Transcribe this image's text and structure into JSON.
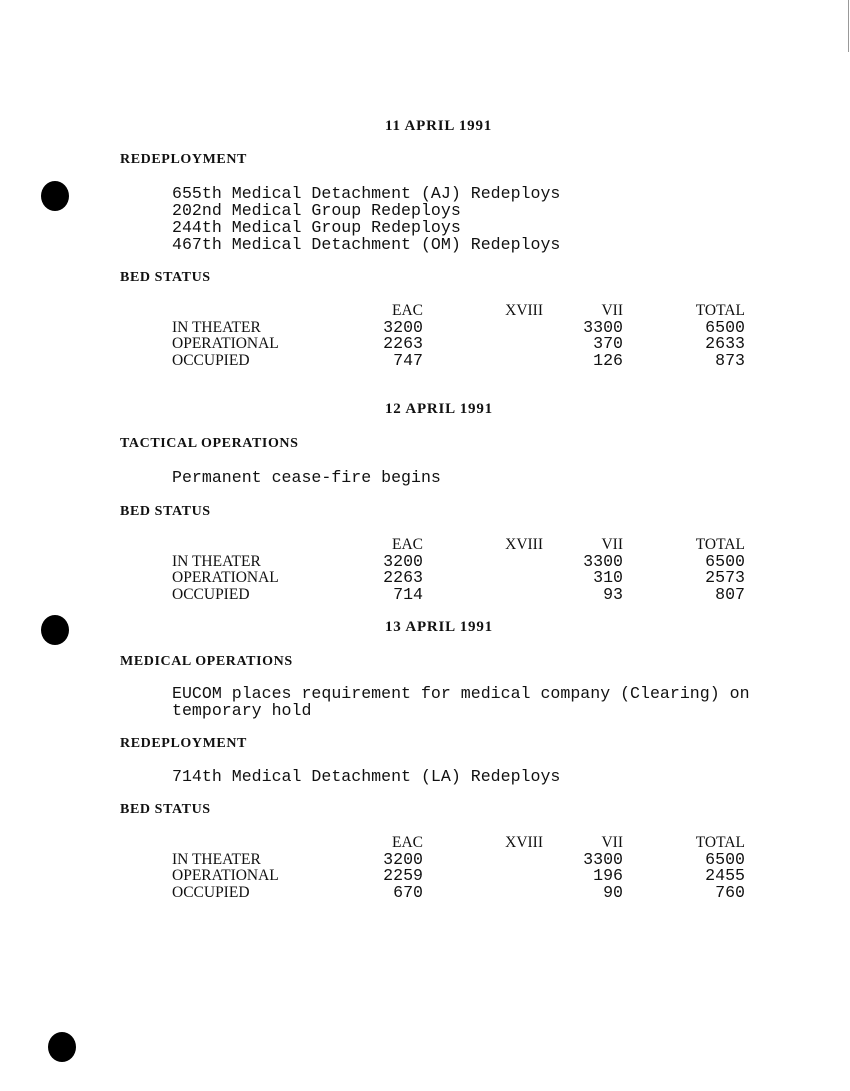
{
  "days": [
    {
      "date": "11 APRIL 1991",
      "sections": [
        {
          "heading": "REDEPLOYMENT",
          "lines": [
            "655th Medical Detachment (AJ) Redeploys",
            "202nd Medical Group Redeploys",
            "244th Medical Group Redeploys",
            "467th Medical Detachment (OM) Redeploys"
          ]
        },
        {
          "heading": "BED STATUS"
        }
      ],
      "bed_status": {
        "columns": [
          "EAC",
          "XVIII",
          "VII",
          "TOTAL"
        ],
        "rows": [
          {
            "label": "IN THEATER",
            "values": [
              "3200",
              "",
              "3300",
              "6500"
            ]
          },
          {
            "label": "OPERATIONAL",
            "values": [
              "2263",
              "",
              "370",
              "2633"
            ]
          },
          {
            "label": "OCCUPIED",
            "values": [
              "747",
              "",
              "126",
              "873"
            ]
          }
        ]
      }
    },
    {
      "date": "12 APRIL 1991",
      "sections": [
        {
          "heading": "TACTICAL OPERATIONS",
          "lines": [
            "Permanent cease-fire begins"
          ]
        },
        {
          "heading": "BED STATUS"
        }
      ],
      "bed_status": {
        "columns": [
          "EAC",
          "XVIII",
          "VII",
          "TOTAL"
        ],
        "rows": [
          {
            "label": "IN THEATER",
            "values": [
              "3200",
              "",
              "3300",
              "6500"
            ]
          },
          {
            "label": "OPERATIONAL",
            "values": [
              "2263",
              "",
              "310",
              "2573"
            ]
          },
          {
            "label": "OCCUPIED",
            "values": [
              "714",
              "",
              "93",
              "807"
            ]
          }
        ]
      }
    },
    {
      "date": "13 APRIL 1991",
      "sections": [
        {
          "heading": "MEDICAL OPERATIONS",
          "lines": [
            "EUCOM places requirement for medical company (Clearing) on",
            "temporary hold"
          ]
        },
        {
          "heading": "REDEPLOYMENT",
          "lines": [
            "714th Medical Detachment (LA) Redeploys"
          ]
        },
        {
          "heading": "BED STATUS"
        }
      ],
      "bed_status": {
        "columns": [
          "EAC",
          "XVIII",
          "VII",
          "TOTAL"
        ],
        "rows": [
          {
            "label": "IN THEATER",
            "values": [
              "3200",
              "",
              "3300",
              "6500"
            ]
          },
          {
            "label": "OPERATIONAL",
            "values": [
              "2259",
              "",
              "196",
              "2455"
            ]
          },
          {
            "label": "OCCUPIED",
            "values": [
              "670",
              "",
              "90",
              "760"
            ]
          }
        ]
      }
    }
  ]
}
